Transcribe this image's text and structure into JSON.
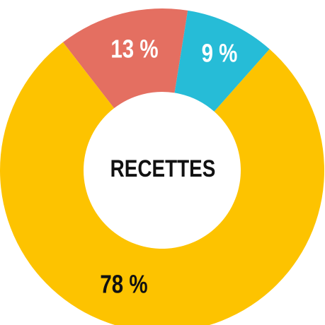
{
  "chart_data": {
    "type": "donut",
    "title": "RECETTES",
    "categories": [
      "13 %",
      "9 %",
      "78 %"
    ],
    "values": [
      13,
      9,
      78
    ],
    "value_labels": [
      "13 %",
      "9 %",
      "78 %"
    ],
    "colors": [
      "#e46f61",
      "#26bcd7",
      "#fdc300"
    ],
    "label_colors": [
      "#ffffff",
      "#ffffff",
      "#111111"
    ]
  }
}
